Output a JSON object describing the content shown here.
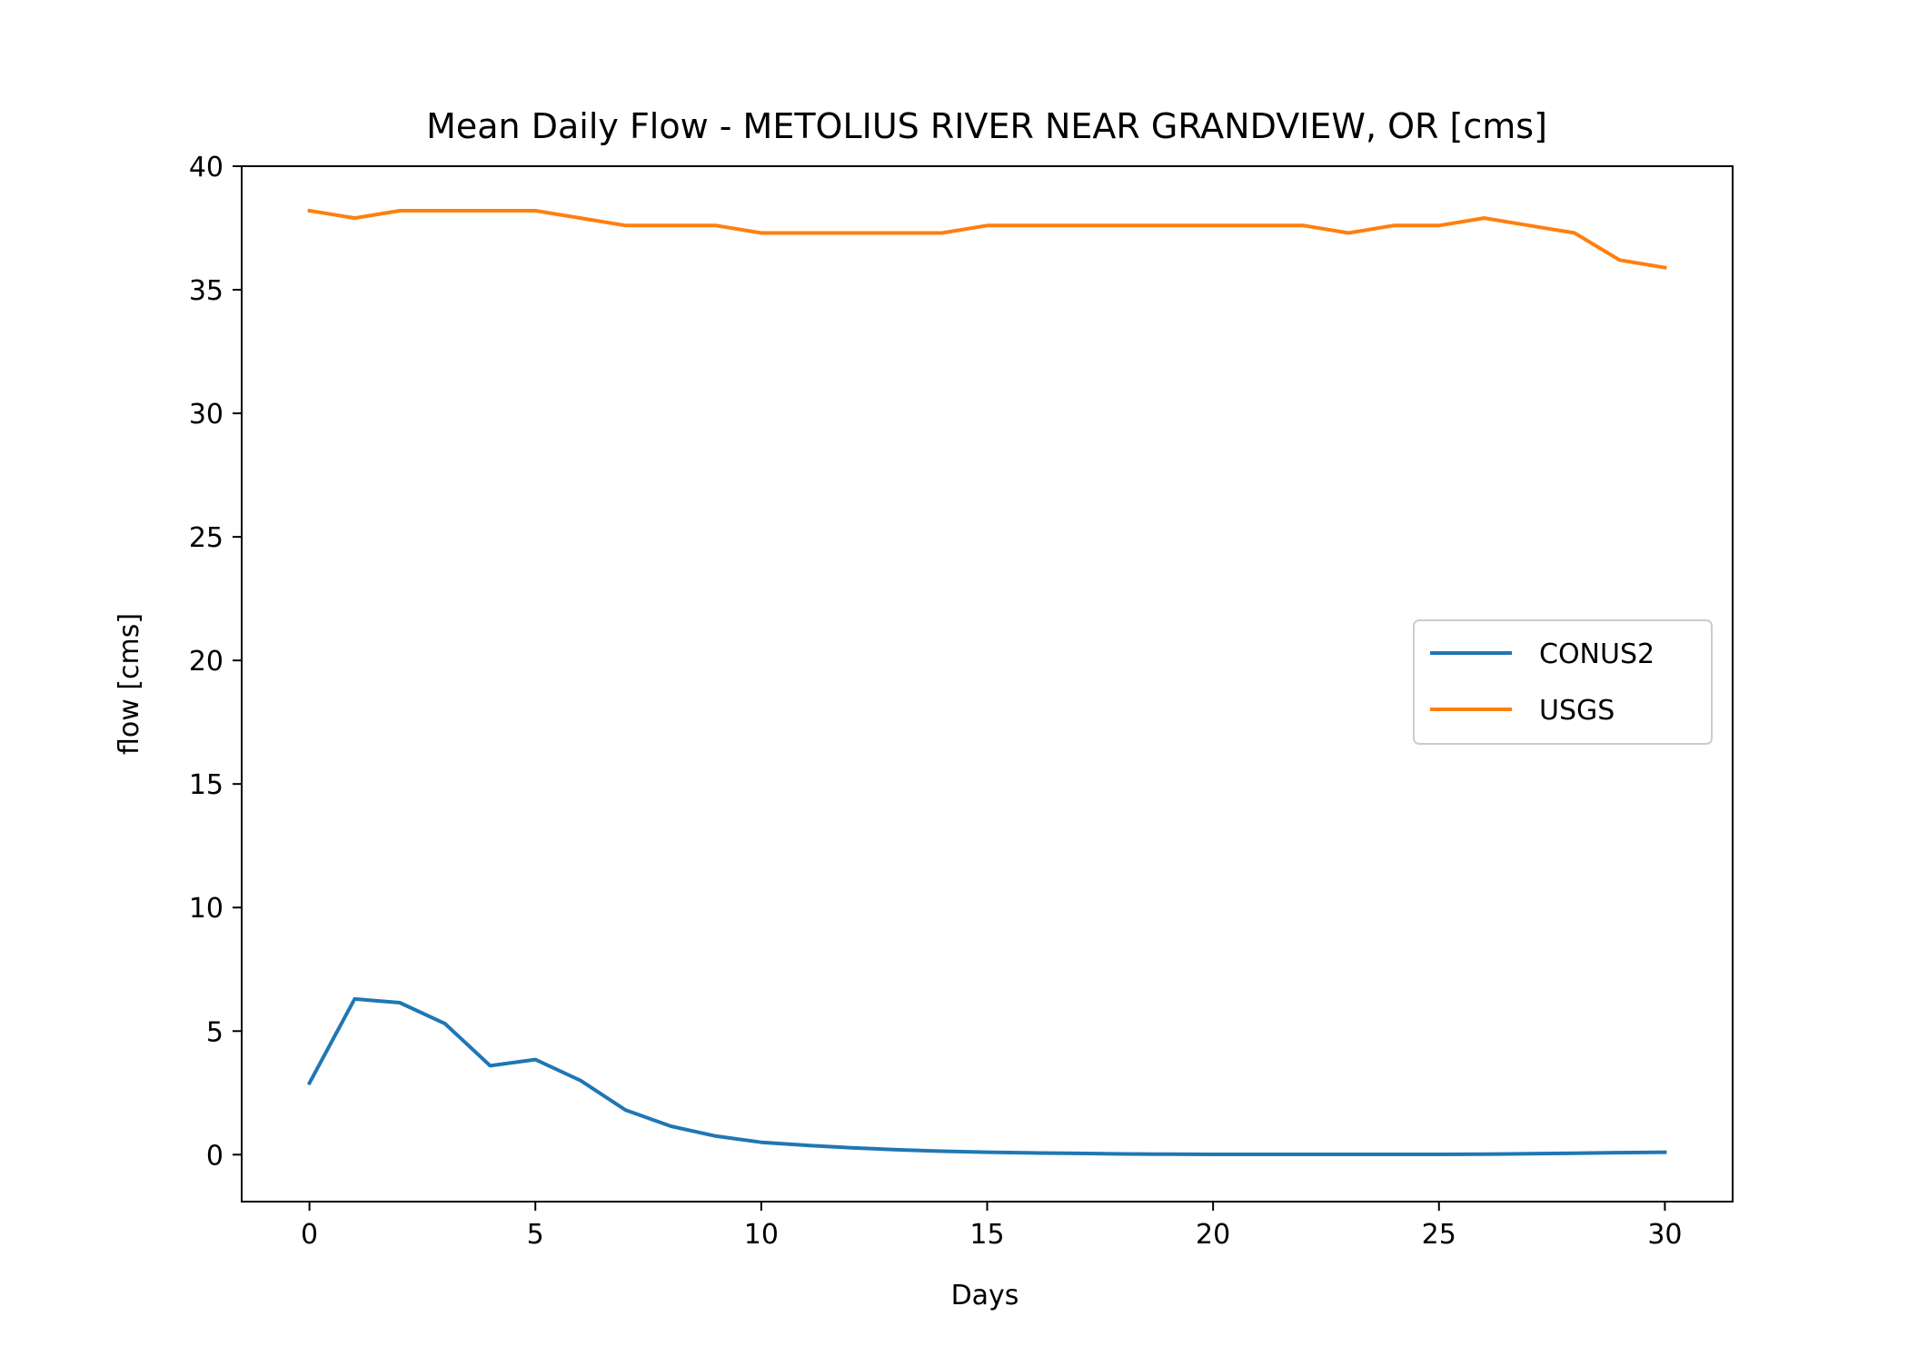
{
  "chart_data": {
    "type": "line",
    "title": "Mean Daily Flow - METOLIUS RIVER NEAR GRANDVIEW, OR [cms]",
    "xlabel": "Days",
    "ylabel": "flow [cms]",
    "xlim": [
      -1.5,
      31.5
    ],
    "ylim": [
      -1.9,
      40
    ],
    "xticks": [
      0,
      5,
      10,
      15,
      20,
      25,
      30
    ],
    "yticks": [
      0,
      5,
      10,
      15,
      20,
      25,
      30,
      35,
      40
    ],
    "grid": false,
    "legend_position": "center-right",
    "x": [
      0,
      1,
      2,
      3,
      4,
      5,
      6,
      7,
      8,
      9,
      10,
      11,
      12,
      13,
      14,
      15,
      16,
      17,
      18,
      19,
      20,
      21,
      22,
      23,
      24,
      25,
      26,
      27,
      28,
      29,
      30
    ],
    "series": [
      {
        "name": "CONUS2",
        "color": "#1f77b4",
        "values": [
          2.9,
          6.3,
          6.15,
          5.3,
          3.6,
          3.85,
          3.0,
          1.8,
          1.15,
          0.75,
          0.5,
          0.38,
          0.28,
          0.2,
          0.14,
          0.1,
          0.07,
          0.05,
          0.03,
          0.02,
          0.01,
          0.01,
          0.01,
          0.01,
          0.01,
          0.01,
          0.02,
          0.04,
          0.06,
          0.08,
          0.1
        ]
      },
      {
        "name": "USGS",
        "color": "#ff7f0e",
        "values": [
          38.2,
          37.9,
          38.2,
          38.2,
          38.2,
          38.2,
          37.9,
          37.6,
          37.6,
          37.6,
          37.3,
          37.3,
          37.3,
          37.3,
          37.3,
          37.6,
          37.6,
          37.6,
          37.6,
          37.6,
          37.6,
          37.6,
          37.6,
          37.3,
          37.6,
          37.6,
          37.9,
          37.6,
          37.3,
          36.2,
          35.9
        ]
      }
    ]
  }
}
